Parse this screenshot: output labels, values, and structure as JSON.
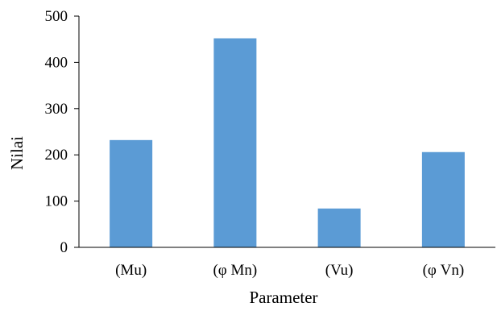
{
  "chart_data": {
    "type": "bar",
    "title": "",
    "xlabel": "Parameter",
    "ylabel": "Nilai",
    "categories": [
      "(Mu)",
      "(φ Mn)",
      "(Vu)",
      "(φ Vn)"
    ],
    "values": [
      232,
      452,
      84,
      206
    ],
    "ylim": [
      0,
      500
    ],
    "yticks": [
      0,
      100,
      200,
      300,
      400,
      500
    ],
    "grid": false,
    "legend": "none",
    "bar_color": "#5b9bd5",
    "axis_color": "#000000"
  }
}
